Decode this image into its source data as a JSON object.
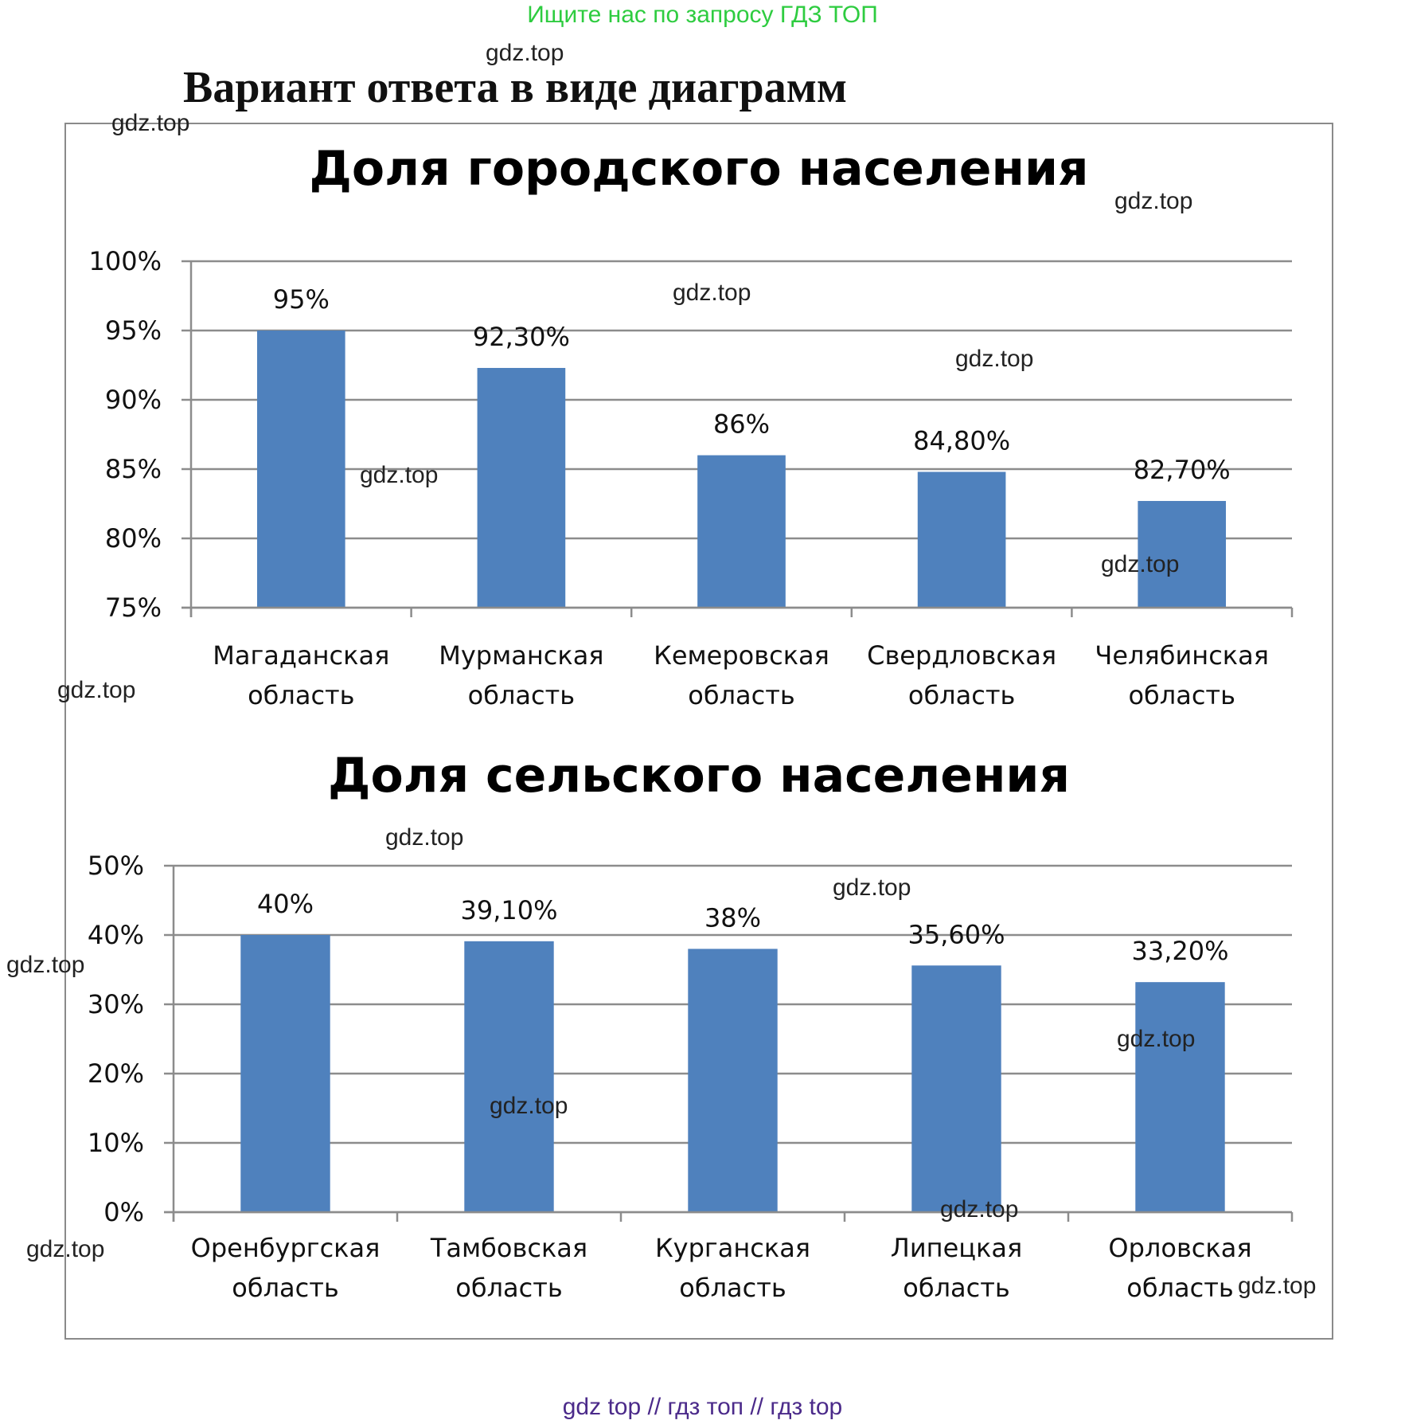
{
  "banner": "Ищите нас по запросу ГДЗ ТОП",
  "main_title": "Вариант ответа в виде диаграмм",
  "watermark": "gdz.top",
  "footer": "gdz top  //  гдз топ  //  гдз top",
  "colors": {
    "bar": "#4f81bd",
    "grid": "#8c8c8c",
    "banner": "#2ecc40",
    "footer": "#4b2a8a"
  },
  "chart_data": [
    {
      "type": "bar",
      "title": "Доля городского населения",
      "categories": [
        [
          "Магаданская",
          "область"
        ],
        [
          "Мурманская",
          "область"
        ],
        [
          "Кемеровская",
          "область"
        ],
        [
          "Свердловская",
          "область"
        ],
        [
          "Челябинская",
          "область"
        ]
      ],
      "values": [
        95,
        92.3,
        86,
        84.8,
        82.7
      ],
      "data_labels": [
        "95%",
        "92,30%",
        "86%",
        "84,80%",
        "82,70%"
      ],
      "ylim": [
        75,
        100
      ],
      "yticks": [
        "75%",
        "80%",
        "85%",
        "90%",
        "95%",
        "100%"
      ],
      "grid": true,
      "legend": "none"
    },
    {
      "type": "bar",
      "title": "Доля сельского  населения",
      "categories": [
        [
          "Оренбургская",
          "область"
        ],
        [
          "Тамбовская",
          "область"
        ],
        [
          "Курганская",
          "область"
        ],
        [
          "Липецкая",
          "область"
        ],
        [
          "Орловская",
          "область"
        ]
      ],
      "values": [
        40,
        39.1,
        38,
        35.6,
        33.2
      ],
      "data_labels": [
        "40%",
        "39,10%",
        "38%",
        "35,60%",
        "33,20%"
      ],
      "ylim": [
        0,
        50
      ],
      "yticks": [
        "0%",
        "10%",
        "20%",
        "30%",
        "40%",
        "50%"
      ],
      "grid": true,
      "legend": "none"
    }
  ]
}
